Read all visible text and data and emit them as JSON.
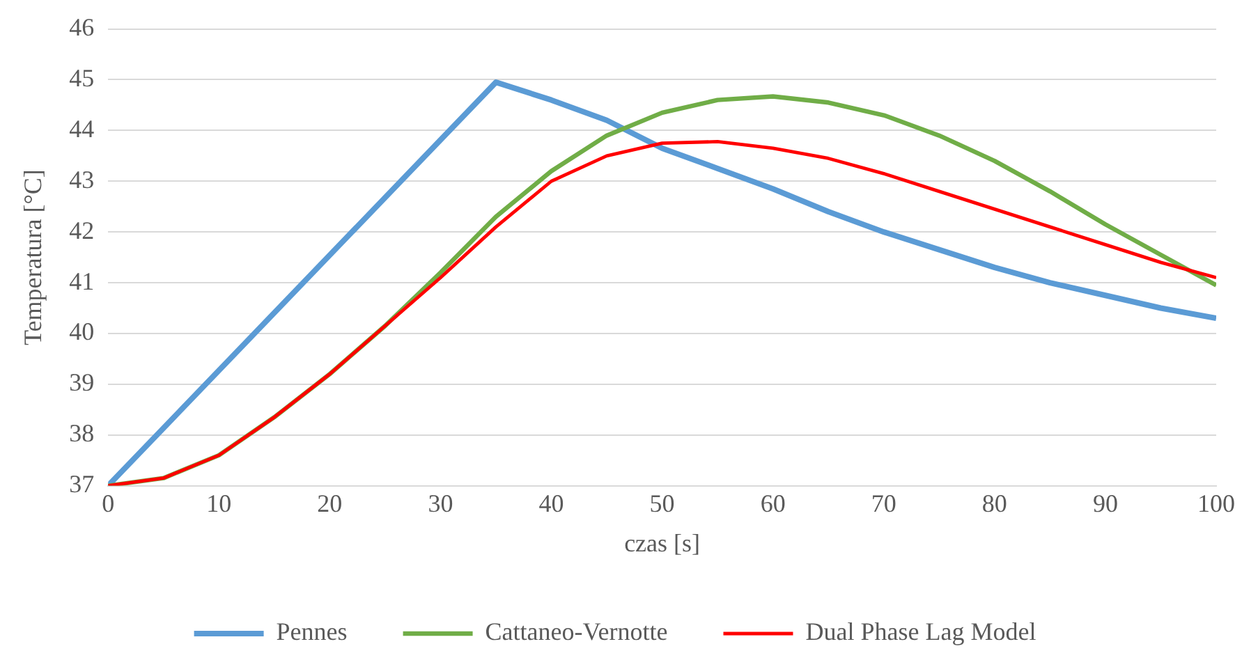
{
  "chart_data": {
    "type": "line",
    "xlabel": "czas [s]",
    "ylabel": "Temperatura [°C]",
    "xlim": [
      0,
      100
    ],
    "xticks": [
      0,
      10,
      20,
      30,
      40,
      50,
      60,
      70,
      80,
      90,
      100
    ],
    "ylim": [
      37,
      46
    ],
    "yticks": [
      37,
      38,
      39,
      40,
      41,
      42,
      43,
      44,
      45,
      46
    ],
    "grid": "y",
    "legend": "bottom",
    "marker": "none",
    "line_style": "solid",
    "series": [
      {
        "name": "Pennes",
        "color": "#5b9bd5",
        "x": [
          0,
          35,
          40,
          45,
          50,
          55,
          60,
          65,
          70,
          75,
          80,
          85,
          90,
          95,
          100
        ],
        "values": [
          37,
          44.95,
          44.6,
          44.2,
          43.65,
          43.25,
          42.85,
          42.4,
          42.0,
          41.65,
          41.3,
          41.0,
          40.75,
          40.5,
          40.3
        ]
      },
      {
        "name": "Cattaneo-Vernotte",
        "color": "#70ad47",
        "x": [
          0,
          5,
          10,
          15,
          20,
          25,
          30,
          35,
          40,
          45,
          50,
          55,
          60,
          65,
          70,
          75,
          80,
          85,
          90,
          95,
          100
        ],
        "values": [
          37,
          37.15,
          37.6,
          38.35,
          39.2,
          40.15,
          41.2,
          42.3,
          43.2,
          43.9,
          44.35,
          44.6,
          44.67,
          44.55,
          44.3,
          43.9,
          43.4,
          42.8,
          42.15,
          41.55,
          40.95
        ]
      },
      {
        "name": "Dual Phase Lag Model",
        "color": "#ff0000",
        "x": [
          0,
          5,
          10,
          15,
          20,
          25,
          30,
          35,
          40,
          45,
          50,
          55,
          60,
          65,
          70,
          75,
          80,
          85,
          90,
          95,
          100
        ],
        "values": [
          37,
          37.15,
          37.6,
          38.35,
          39.2,
          40.15,
          41.1,
          42.1,
          43.0,
          43.5,
          43.75,
          43.78,
          43.65,
          43.45,
          43.15,
          42.8,
          42.45,
          42.1,
          41.75,
          41.4,
          41.1
        ]
      }
    ]
  }
}
